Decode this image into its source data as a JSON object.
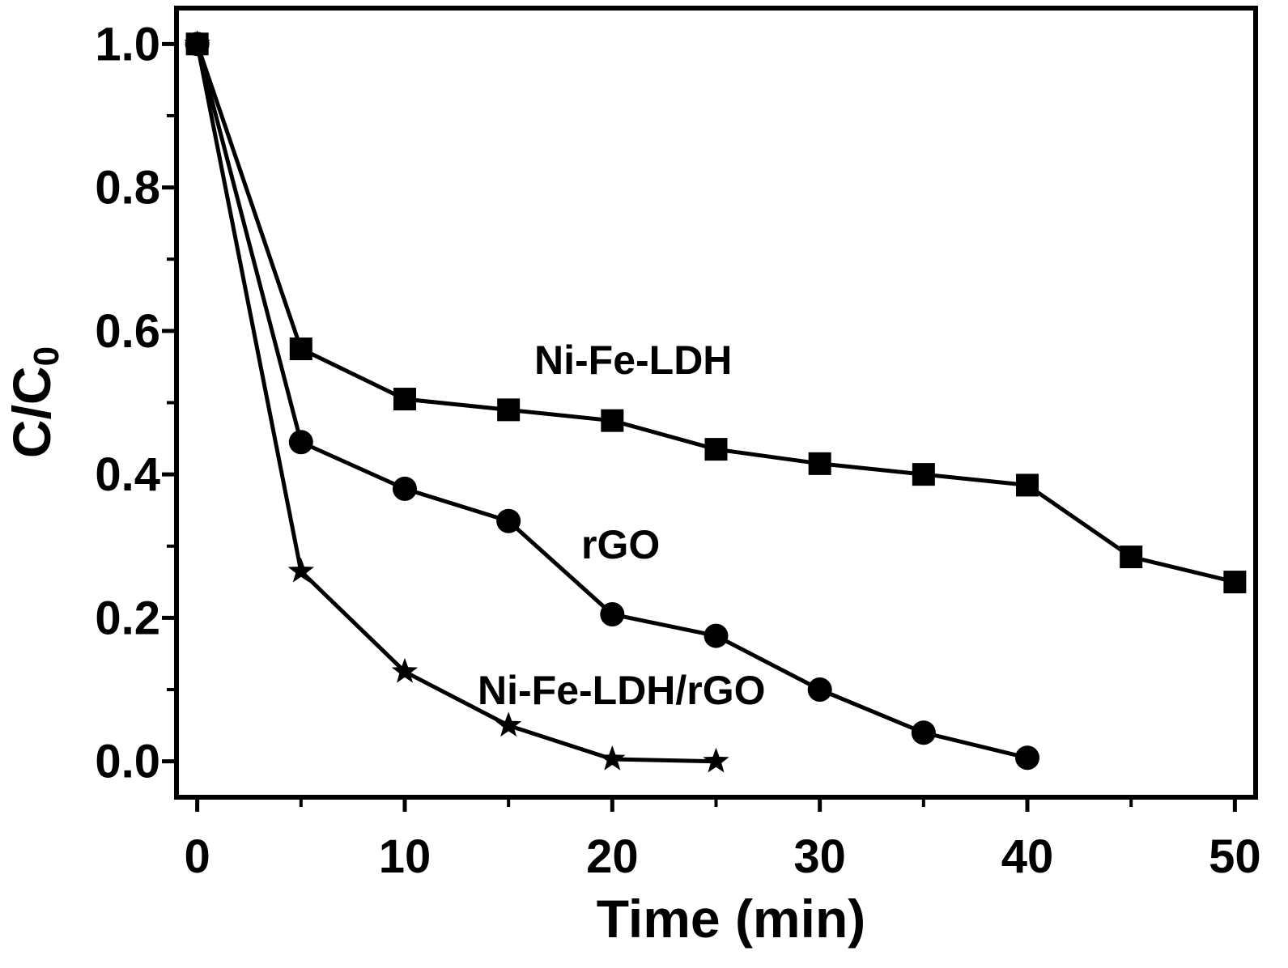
{
  "chart_data": {
    "type": "line",
    "xlabel": "Time (min)",
    "ylabel": {
      "main": "C/C",
      "subscript": "0"
    },
    "xlim": [
      -1,
      51
    ],
    "ylim": [
      -0.05,
      1.05
    ],
    "xticks": [
      0,
      10,
      20,
      30,
      40,
      50
    ],
    "yticks": [
      0.0,
      0.2,
      0.4,
      0.6,
      0.8,
      1.0
    ],
    "xtick_labels": [
      "0",
      "10",
      "20",
      "30",
      "40",
      "50"
    ],
    "ytick_labels": [
      "0.0",
      "0.2",
      "0.4",
      "0.6",
      "0.8",
      "1.0"
    ],
    "xminor": [
      5,
      15,
      25,
      35,
      45
    ],
    "yminor": [
      0.1,
      0.3,
      0.5,
      0.7,
      0.9
    ],
    "grid": false,
    "legend": "none",
    "series": [
      {
        "name": "Ni-Fe-LDH",
        "marker": "square",
        "color": "#000000",
        "x": [
          0,
          5,
          10,
          15,
          20,
          25,
          30,
          35,
          40,
          45,
          50
        ],
        "y": [
          1.0,
          0.575,
          0.505,
          0.49,
          0.475,
          0.435,
          0.415,
          0.4,
          0.385,
          0.285,
          0.25
        ]
      },
      {
        "name": "rGO",
        "marker": "circle",
        "color": "#000000",
        "x": [
          0,
          5,
          10,
          15,
          20,
          25,
          30,
          35,
          40
        ],
        "y": [
          1.0,
          0.445,
          0.38,
          0.335,
          0.205,
          0.175,
          0.1,
          0.04,
          0.005
        ]
      },
      {
        "name": "Ni-Fe-LDH/rGO",
        "marker": "star",
        "color": "#000000",
        "x": [
          0,
          5,
          10,
          15,
          20,
          25
        ],
        "y": [
          1.0,
          0.265,
          0.125,
          0.05,
          0.003,
          0.0
        ]
      }
    ]
  }
}
